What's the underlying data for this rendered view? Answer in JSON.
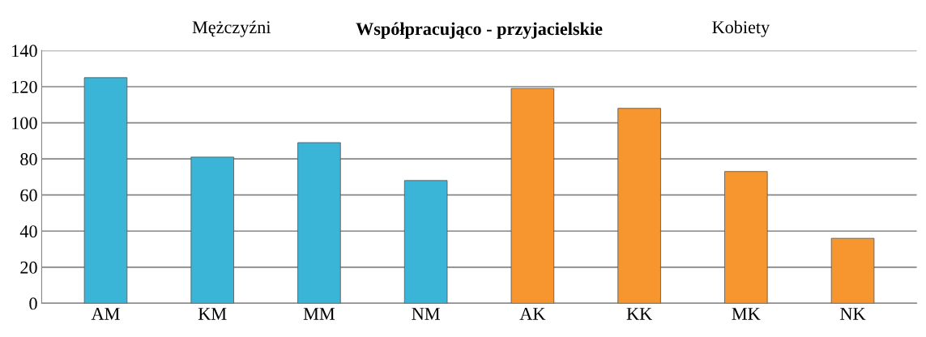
{
  "chart_data": {
    "type": "bar",
    "title": "Współpracująco - przyjacielskie",
    "categories": [
      "AM",
      "KM",
      "MM",
      "NM",
      "AK",
      "KK",
      "MK",
      "NK"
    ],
    "values": [
      125,
      81,
      89,
      68,
      119,
      108,
      73,
      36
    ],
    "colors": [
      "#3ab5d8",
      "#3ab5d8",
      "#3ab5d8",
      "#3ab5d8",
      "#f7962e",
      "#f7962e",
      "#f7962e",
      "#f7962e"
    ],
    "ylim": [
      0,
      140
    ],
    "yticks": [
      0,
      20,
      40,
      60,
      80,
      100,
      120,
      140
    ],
    "grid": "y",
    "annotations": [
      "Mężczyźni",
      "Kobiety"
    ]
  }
}
